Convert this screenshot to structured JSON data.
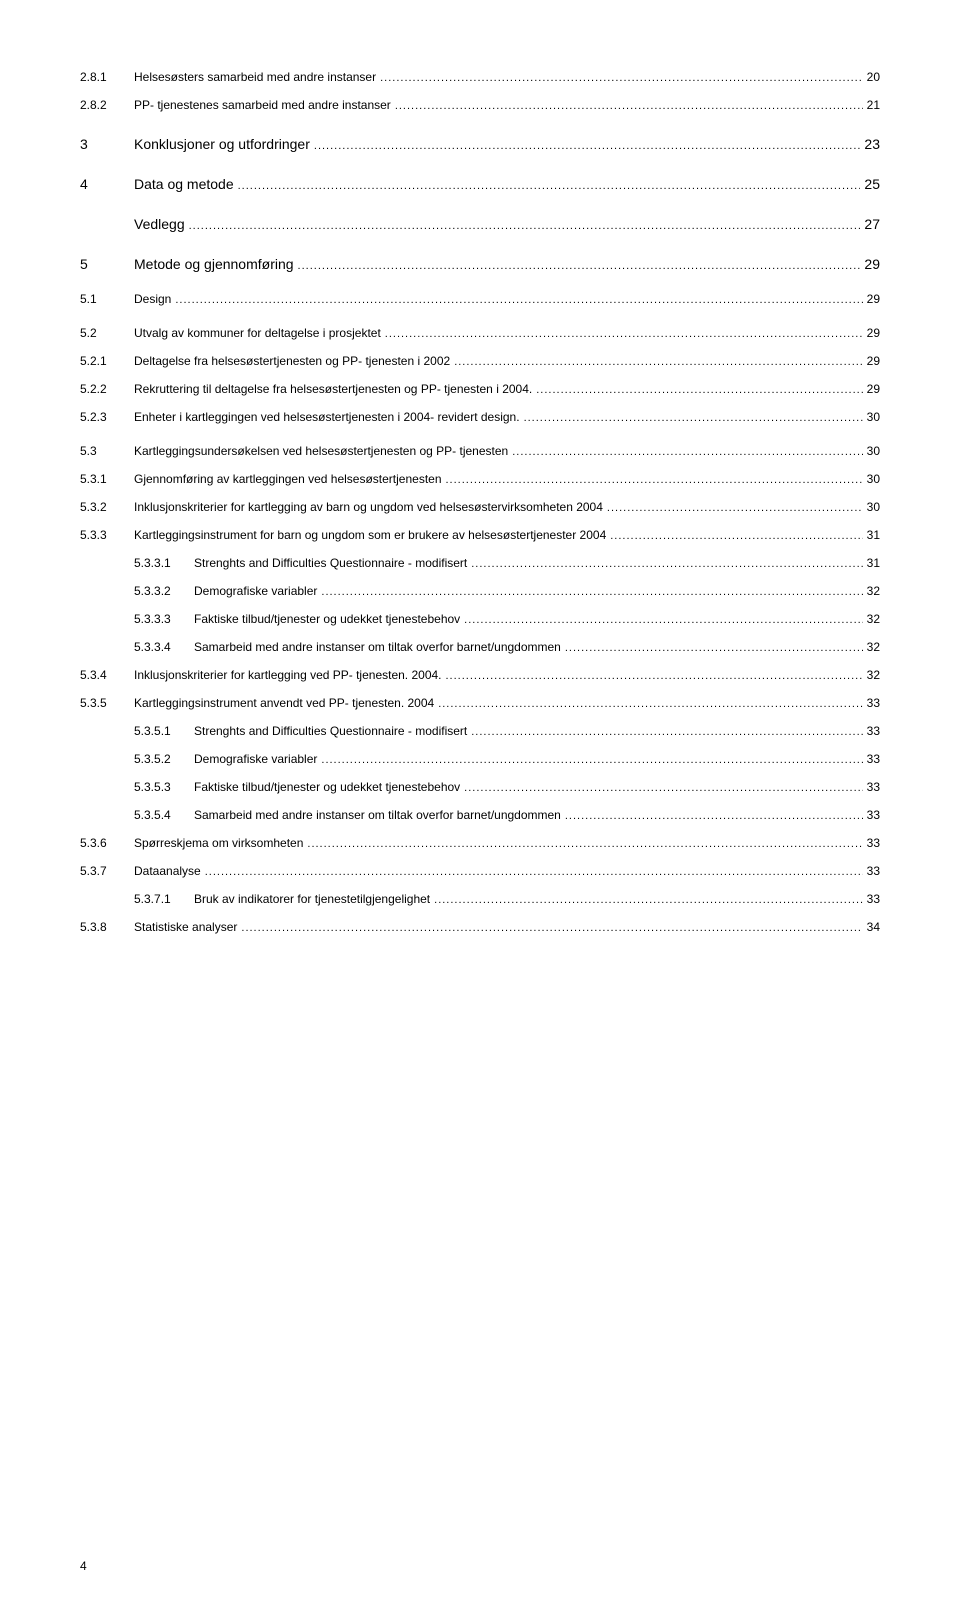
{
  "page_number": "4",
  "leader_dots": "...................................................................................................................................................................................................",
  "entries": [
    {
      "num": "2.8.1",
      "title": "Helsesøsters samarbeid med andre instanser",
      "page": "20",
      "level": 2
    },
    {
      "num": "2.8.2",
      "title": "PP- tjenestenes samarbeid med andre instanser",
      "page": "21",
      "level": 2
    },
    {
      "num": "3",
      "title": "Konklusjoner og utfordringer",
      "page": "23",
      "level": 0
    },
    {
      "num": "4",
      "title": "Data og metode",
      "page": "25",
      "level": 0
    },
    {
      "num": "",
      "title": "Vedlegg",
      "page": "27",
      "level": 0
    },
    {
      "num": "5",
      "title": "Metode og gjennomføring",
      "page": "29",
      "level": 0
    },
    {
      "num": "5.1",
      "title": "Design",
      "page": "29",
      "level": 1
    },
    {
      "num": "5.2",
      "title": "Utvalg av kommuner for deltagelse i prosjektet",
      "page": "29",
      "level": 1
    },
    {
      "num": "5.2.1",
      "title": "Deltagelse fra helsesøstertjenesten og PP- tjenesten i 2002",
      "page": "29",
      "level": 2
    },
    {
      "num": "5.2.2",
      "title": "Rekruttering til deltagelse fra helsesøstertjenesten og PP- tjenesten i 2004.",
      "page": "29",
      "level": 2
    },
    {
      "num": "5.2.3",
      "title": "Enheter i kartleggingen ved helsesøstertjenesten i 2004- revidert design.",
      "page": "30",
      "level": 2
    },
    {
      "num": "5.3",
      "title": "Kartleggingsundersøkelsen ved helsesøstertjenesten og PP- tjenesten",
      "page": "30",
      "level": 1
    },
    {
      "num": "5.3.1",
      "title": "Gjennomføring av kartleggingen ved helsesøstertjenesten",
      "page": "30",
      "level": 2
    },
    {
      "num": "5.3.2",
      "title": "Inklusjonskriterier for kartlegging av barn og ungdom ved helsesøstervirksomheten 2004",
      "page": "30",
      "level": 2
    },
    {
      "num": "5.3.3",
      "title": "Kartleggingsinstrument for barn og ungdom som er brukere av helsesøstertjenester 2004",
      "page": "31",
      "level": 2
    },
    {
      "num": "5.3.3.1",
      "title": "Strenghts and Difficulties Questionnaire - modifisert",
      "page": "31",
      "level": 3
    },
    {
      "num": "5.3.3.2",
      "title": "Demografiske variabler",
      "page": "32",
      "level": 3
    },
    {
      "num": "5.3.3.3",
      "title": "Faktiske tilbud/tjenester og udekket tjenestebehov",
      "page": "32",
      "level": 3
    },
    {
      "num": "5.3.3.4",
      "title": "Samarbeid med andre instanser om tiltak overfor barnet/ungdommen",
      "page": "32",
      "level": 3
    },
    {
      "num": "5.3.4",
      "title": "Inklusjonskriterier for kartlegging ved PP- tjenesten. 2004.",
      "page": "32",
      "level": 2
    },
    {
      "num": "5.3.5",
      "title": "Kartleggingsinstrument anvendt ved PP- tjenesten. 2004",
      "page": "33",
      "level": 2
    },
    {
      "num": "5.3.5.1",
      "title": "Strenghts and Difficulties Questionnaire - modifisert",
      "page": "33",
      "level": 3
    },
    {
      "num": "5.3.5.2",
      "title": "Demografiske variabler",
      "page": "33",
      "level": 3
    },
    {
      "num": "5.3.5.3",
      "title": "Faktiske tilbud/tjenester og udekket tjenestebehov",
      "page": "33",
      "level": 3
    },
    {
      "num": "5.3.5.4",
      "title": "Samarbeid med andre instanser om tiltak overfor barnet/ungdommen",
      "page": "33",
      "level": 3
    },
    {
      "num": "5.3.6",
      "title": "Spørreskjema om virksomheten",
      "page": "33",
      "level": 2
    },
    {
      "num": "5.3.7",
      "title": "Dataanalyse",
      "page": "33",
      "level": 2
    },
    {
      "num": "5.3.7.1",
      "title": "Bruk av indikatorer for tjenestetilgjengelighet",
      "page": "33",
      "level": 3
    },
    {
      "num": "5.3.8",
      "title": "Statistiske analyser",
      "page": "34",
      "level": 2
    }
  ]
}
